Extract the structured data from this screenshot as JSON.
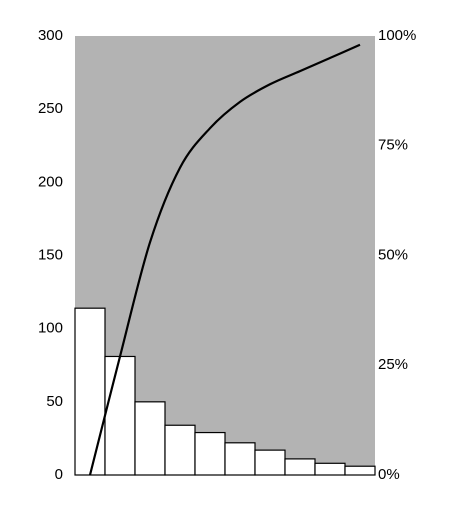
{
  "chart_data": {
    "type": "pareto",
    "plot_background": "#b3b3b3",
    "series": [
      {
        "type": "bar",
        "color": "#ffffff",
        "values": [
          114,
          81,
          50,
          34,
          29,
          22,
          17,
          11,
          8,
          6
        ]
      },
      {
        "type": "line",
        "axis": "y2",
        "color": "#000000",
        "values": [
          0,
          27,
          53,
          70,
          79,
          85,
          89,
          92,
          95,
          98
        ]
      }
    ],
    "ylim": [
      0,
      300
    ],
    "yticks": [
      0,
      50,
      100,
      150,
      200,
      250,
      300
    ],
    "y2lim": [
      0,
      100
    ],
    "y2ticks": [
      {
        "value": 0,
        "label": "0%"
      },
      {
        "value": 25,
        "label": "25%"
      },
      {
        "value": 50,
        "label": "50%"
      },
      {
        "value": 75,
        "label": "75%"
      },
      {
        "value": 100,
        "label": "100%"
      }
    ]
  }
}
